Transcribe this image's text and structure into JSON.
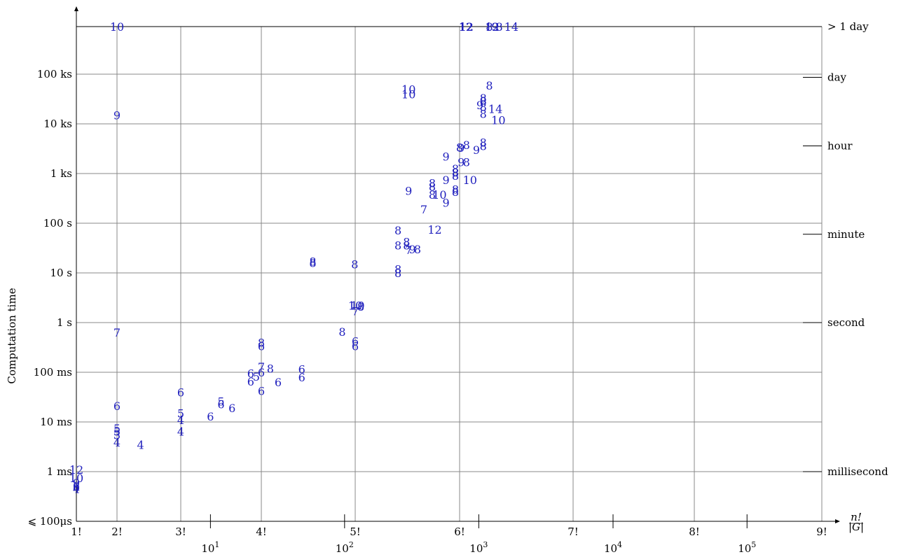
{
  "chart_data": {
    "type": "scatter",
    "title": "",
    "xlabel_html": "n!/|G|",
    "xlabel": {
      "numerator": "n!",
      "denominator": "|G|"
    },
    "ylabel": "Computation time",
    "x_scale": "log",
    "y_scale": "log",
    "grid": true,
    "x_factorial_ticks": [
      {
        "label": "1!",
        "value": 1
      },
      {
        "label": "2!",
        "value": 2
      },
      {
        "label": "3!",
        "value": 6
      },
      {
        "label": "4!",
        "value": 24
      },
      {
        "label": "5!",
        "value": 120
      },
      {
        "label": "6!",
        "value": 720
      },
      {
        "label": "7!",
        "value": 5040
      },
      {
        "label": "8!",
        "value": 40320
      },
      {
        "label": "9!",
        "value": 362880
      }
    ],
    "x_power_ticks": [
      {
        "base": "10",
        "exp": "1",
        "value": 10
      },
      {
        "base": "10",
        "exp": "2",
        "value": 100
      },
      {
        "base": "10",
        "exp": "3",
        "value": 1000
      },
      {
        "base": "10",
        "exp": "4",
        "value": 10000
      },
      {
        "base": "10",
        "exp": "5",
        "value": 100000
      }
    ],
    "y_left_ticks": [
      {
        "label": "⩽ 100μs",
        "seconds": 0.0001
      },
      {
        "label": "1 ms",
        "seconds": 0.001
      },
      {
        "label": "10 ms",
        "seconds": 0.01
      },
      {
        "label": "100 ms",
        "seconds": 0.1
      },
      {
        "label": "1 s",
        "seconds": 1
      },
      {
        "label": "10 s",
        "seconds": 10
      },
      {
        "label": "100 s",
        "seconds": 100
      },
      {
        "label": "1 ks",
        "seconds": 1000
      },
      {
        "label": "10 ks",
        "seconds": 10000
      },
      {
        "label": "100 ks",
        "seconds": 100000
      }
    ],
    "y_right_ticks": [
      {
        "label": "millisecond",
        "seconds": 0.001
      },
      {
        "label": "second",
        "seconds": 1
      },
      {
        "label": "minute",
        "seconds": 60
      },
      {
        "label": "hour",
        "seconds": 3600
      },
      {
        "label": "day",
        "seconds": 86400
      },
      {
        "label": "> 1 day",
        "seconds": 1000000
      }
    ],
    "points": [
      {
        "label": "10",
        "x": 2,
        "y": 1000000
      },
      {
        "label": "12",
        "x": 800,
        "y": 1000000
      },
      {
        "label": "12",
        "x": 810,
        "y": 1000000
      },
      {
        "label": "8",
        "x": 1200,
        "y": 1000000
      },
      {
        "label": "12",
        "x": 1260,
        "y": 1000000
      },
      {
        "label": "9",
        "x": 1320,
        "y": 1000000
      },
      {
        "label": "8",
        "x": 1420,
        "y": 1000000
      },
      {
        "label": "14",
        "x": 1750,
        "y": 1000000
      },
      {
        "label": "10",
        "x": 300,
        "y": 50000
      },
      {
        "label": "10",
        "x": 300,
        "y": 40000
      },
      {
        "label": "9",
        "x": 2,
        "y": 15000
      },
      {
        "label": "8",
        "x": 1200,
        "y": 60000
      },
      {
        "label": "8",
        "x": 1080,
        "y": 33000
      },
      {
        "label": "8",
        "x": 1080,
        "y": 29000
      },
      {
        "label": "9",
        "x": 1020,
        "y": 24000
      },
      {
        "label": "8",
        "x": 1080,
        "y": 22000
      },
      {
        "label": "8",
        "x": 1080,
        "y": 16000
      },
      {
        "label": "14",
        "x": 1330,
        "y": 20000
      },
      {
        "label": "10",
        "x": 1400,
        "y": 12000
      },
      {
        "label": "8",
        "x": 1080,
        "y": 4200
      },
      {
        "label": "8",
        "x": 1080,
        "y": 3600
      },
      {
        "label": "8",
        "x": 810,
        "y": 3800
      },
      {
        "label": "8",
        "x": 720,
        "y": 3400
      },
      {
        "label": "9",
        "x": 740,
        "y": 3300
      },
      {
        "label": "9",
        "x": 960,
        "y": 3000
      },
      {
        "label": "9",
        "x": 570,
        "y": 2200
      },
      {
        "label": "9",
        "x": 740,
        "y": 1700
      },
      {
        "label": "8",
        "x": 810,
        "y": 1700
      },
      {
        "label": "8",
        "x": 670,
        "y": 1250
      },
      {
        "label": "8",
        "x": 670,
        "y": 1050
      },
      {
        "label": "8",
        "x": 670,
        "y": 900
      },
      {
        "label": "10",
        "x": 860,
        "y": 750
      },
      {
        "label": "9",
        "x": 570,
        "y": 750
      },
      {
        "label": "8",
        "x": 450,
        "y": 650
      },
      {
        "label": "8",
        "x": 450,
        "y": 550
      },
      {
        "label": "8",
        "x": 670,
        "y": 480
      },
      {
        "label": "8",
        "x": 670,
        "y": 430
      },
      {
        "label": "9",
        "x": 300,
        "y": 450
      },
      {
        "label": "8",
        "x": 450,
        "y": 380
      },
      {
        "label": "10",
        "x": 510,
        "y": 380
      },
      {
        "label": "9",
        "x": 570,
        "y": 260
      },
      {
        "label": "7",
        "x": 390,
        "y": 190
      },
      {
        "label": "12",
        "x": 470,
        "y": 75
      },
      {
        "label": "8",
        "x": 250,
        "y": 72
      },
      {
        "label": "8",
        "x": 250,
        "y": 36
      },
      {
        "label": "8",
        "x": 290,
        "y": 36
      },
      {
        "label": "8",
        "x": 290,
        "y": 42
      },
      {
        "label": "7",
        "x": 300,
        "y": 29
      },
      {
        "label": "9",
        "x": 320,
        "y": 30
      },
      {
        "label": "8",
        "x": 350,
        "y": 30
      },
      {
        "label": "8",
        "x": 58,
        "y": 17
      },
      {
        "label": "8",
        "x": 58,
        "y": 16
      },
      {
        "label": "8",
        "x": 119,
        "y": 15
      },
      {
        "label": "8",
        "x": 250,
        "y": 12
      },
      {
        "label": "8",
        "x": 250,
        "y": 10
      },
      {
        "label": "10",
        "x": 120,
        "y": 2.2
      },
      {
        "label": "10",
        "x": 125,
        "y": 2.2
      },
      {
        "label": "7",
        "x": 120,
        "y": 1.7
      },
      {
        "label": "8",
        "x": 132,
        "y": 2.1
      },
      {
        "label": "7",
        "x": 2,
        "y": 0.63
      },
      {
        "label": "8",
        "x": 96,
        "y": 0.66
      },
      {
        "label": "6",
        "x": 120,
        "y": 0.42
      },
      {
        "label": "6",
        "x": 120,
        "y": 0.34
      },
      {
        "label": "8",
        "x": 24,
        "y": 0.4
      },
      {
        "label": "6",
        "x": 24,
        "y": 0.34
      },
      {
        "label": "7",
        "x": 24,
        "y": 0.13
      },
      {
        "label": "8",
        "x": 28,
        "y": 0.12
      },
      {
        "label": "6",
        "x": 24,
        "y": 0.1
      },
      {
        "label": "6",
        "x": 20,
        "y": 0.096
      },
      {
        "label": "5",
        "x": 22,
        "y": 0.082
      },
      {
        "label": "6",
        "x": 20,
        "y": 0.066
      },
      {
        "label": "6",
        "x": 32,
        "y": 0.064
      },
      {
        "label": "6",
        "x": 48,
        "y": 0.115
      },
      {
        "label": "6",
        "x": 48,
        "y": 0.08
      },
      {
        "label": "6",
        "x": 24,
        "y": 0.042
      },
      {
        "label": "6",
        "x": 6,
        "y": 0.04
      },
      {
        "label": "5",
        "x": 12,
        "y": 0.026
      },
      {
        "label": "6",
        "x": 12,
        "y": 0.023
      },
      {
        "label": "6",
        "x": 14.5,
        "y": 0.019
      },
      {
        "label": "6",
        "x": 10,
        "y": 0.013
      },
      {
        "label": "6",
        "x": 2,
        "y": 0.021
      },
      {
        "label": "5",
        "x": 6,
        "y": 0.015
      },
      {
        "label": "4",
        "x": 6,
        "y": 0.011
      },
      {
        "label": "4",
        "x": 6,
        "y": 0.0065
      },
      {
        "label": "5",
        "x": 2,
        "y": 0.0075
      },
      {
        "label": "5",
        "x": 2,
        "y": 0.0065
      },
      {
        "label": "3",
        "x": 2,
        "y": 0.0055
      },
      {
        "label": "4",
        "x": 2,
        "y": 0.0039
      },
      {
        "label": "4",
        "x": 3,
        "y": 0.0035
      },
      {
        "label": "12",
        "x": 1,
        "y": 0.0011
      },
      {
        "label": "10",
        "x": 1,
        "y": 0.00075
      },
      {
        "label": "9",
        "x": 1,
        "y": 0.0006
      },
      {
        "label": "8",
        "x": 1,
        "y": 0.0005
      },
      {
        "label": "6",
        "x": 1,
        "y": 0.00052
      },
      {
        "label": "4",
        "x": 1,
        "y": 0.00045
      }
    ]
  }
}
